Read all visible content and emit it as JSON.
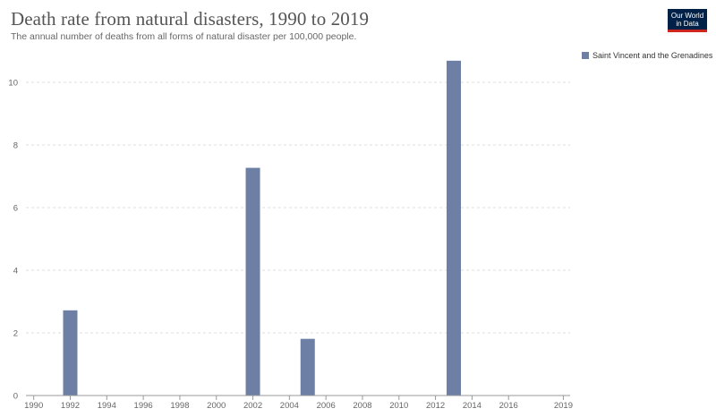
{
  "header": {
    "title": "Death rate from natural disasters, 1990 to 2019",
    "subtitle": "The annual number of deaths from all forms of natural disaster per 100,000 people."
  },
  "logo": {
    "line1": "Our World",
    "line2": "in Data"
  },
  "chart_data": {
    "type": "bar",
    "x": [
      1990,
      1991,
      1992,
      1993,
      1994,
      1995,
      1996,
      1997,
      1998,
      1999,
      2000,
      2001,
      2002,
      2003,
      2004,
      2005,
      2006,
      2007,
      2008,
      2009,
      2010,
      2011,
      2012,
      2013,
      2014,
      2015,
      2016,
      2017,
      2018,
      2019
    ],
    "series": [
      {
        "name": "Saint Vincent and the Grenadines",
        "color": "#6d7fa5",
        "values": [
          0,
          0,
          2.72,
          0,
          0,
          0,
          0,
          0,
          0,
          0,
          0,
          0,
          7.27,
          0,
          0,
          1.81,
          0,
          0,
          0,
          0,
          0,
          0,
          0,
          10.69,
          0,
          0,
          0,
          0,
          0,
          0
        ]
      }
    ],
    "xlim": [
      1990,
      2019
    ],
    "ylim": [
      0,
      11
    ],
    "x_ticks": [
      1990,
      1992,
      1994,
      1996,
      1998,
      2000,
      2002,
      2004,
      2006,
      2008,
      2010,
      2012,
      2014,
      2016,
      2019
    ],
    "y_ticks": [
      0,
      2,
      4,
      6,
      8,
      10
    ],
    "grid": "horizontal-dashed",
    "legend_position": "top-right",
    "xlabel": "",
    "ylabel": ""
  }
}
